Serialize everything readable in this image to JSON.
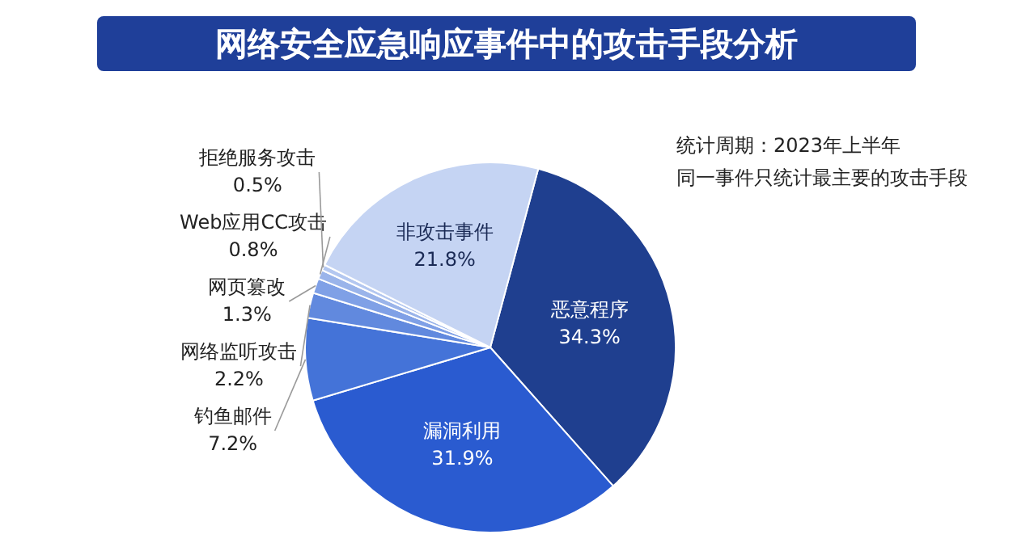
{
  "chart_data": {
    "type": "pie",
    "title": "网络安全应急响应事件中的攻击手段分析",
    "categories": [
      "恶意程序",
      "漏洞利用",
      "钓鱼邮件",
      "网络监听攻击",
      "网页篡改",
      "Web应用CC攻击",
      "拒绝服务攻击",
      "非攻击事件"
    ],
    "values": [
      34.3,
      31.9,
      7.2,
      2.2,
      1.3,
      0.8,
      0.5,
      21.8
    ],
    "value_labels": [
      "34.3%",
      "31.9%",
      "7.2%",
      "2.2%",
      "1.3%",
      "0.8%",
      "0.5%",
      "21.8%"
    ],
    "colors": [
      "#1f3f8f",
      "#2a5bd0",
      "#4473d8",
      "#6189de",
      "#7fa0e6",
      "#9ab4ea",
      "#b3c7f0",
      "#c5d4f3"
    ],
    "annotations": [
      "统计周期：2023年上半年",
      "同一事件只统计最主要的攻击手段"
    ],
    "legend": false
  }
}
